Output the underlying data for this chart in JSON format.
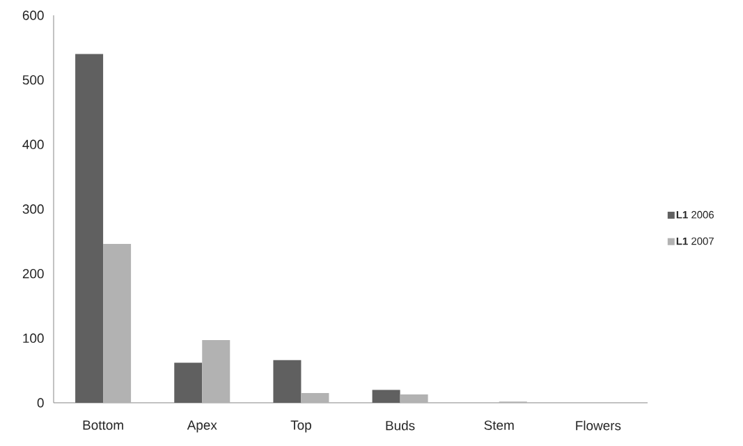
{
  "chart_data": {
    "type": "bar",
    "categories": [
      "Bottom",
      "Apex",
      "Top",
      "Buds",
      "Stem",
      "Flowers"
    ],
    "series": [
      {
        "name": "**L1** 2006",
        "color": "#606060",
        "values": [
          540,
          62,
          66,
          20,
          0,
          0
        ]
      },
      {
        "name": "**L1** 2007",
        "color": "#b2b2b2",
        "values": [
          246,
          97,
          15,
          13,
          2,
          0
        ]
      }
    ],
    "ylim": [
      0,
      600
    ],
    "yticks": [
      0,
      100,
      200,
      300,
      400,
      500,
      600
    ],
    "grid": false,
    "legend": "right"
  }
}
